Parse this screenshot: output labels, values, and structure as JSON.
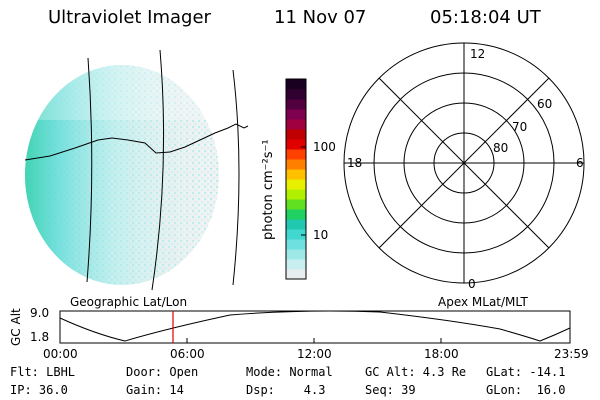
{
  "header": {
    "title": "Ultraviolet Imager",
    "date": "11 Nov 07",
    "time": "05:18:04 UT"
  },
  "colorbar": {
    "unit_label": "photon cm⁻²s⁻¹",
    "ticks": [
      "100",
      "10"
    ],
    "colors": [
      "#e8eef0",
      "#c8eef0",
      "#9fe8e8",
      "#6fe0e0",
      "#40d8d0",
      "#20c8b0",
      "#20d060",
      "#60e020",
      "#b0f000",
      "#e8f000",
      "#ffc000",
      "#ff8000",
      "#ff4000",
      "#e00000",
      "#c00000",
      "#a00040",
      "#800050",
      "#50003c",
      "#300030",
      "#1a0020"
    ]
  },
  "image_panel": {
    "label": "Geographic Lat/Lon"
  },
  "polar_panel": {
    "label": "Apex MLat/MLT",
    "mlt_labels": {
      "top": "12",
      "bottom": "0",
      "left": "18",
      "right": "6"
    },
    "lat_labels": [
      "60",
      "70",
      "80"
    ]
  },
  "altitude_plot": {
    "ylabel": "GC Alt",
    "yticks": [
      "9.0",
      "1.8"
    ],
    "xticks": [
      "00:00",
      "06:00",
      "12:00",
      "18:00",
      "23:59"
    ],
    "marker_time": "05:18"
  },
  "info": {
    "row1": [
      "Flt: LBHL",
      "Door: Open",
      "Mode: Normal",
      "GC Alt: 4.3 Re",
      "GLat: -14.1"
    ],
    "row2": [
      "IP: 36.0",
      "Gain: 14",
      "Dsp:    4.3",
      "Seq: 39",
      "GLon:  16.0"
    ]
  }
}
